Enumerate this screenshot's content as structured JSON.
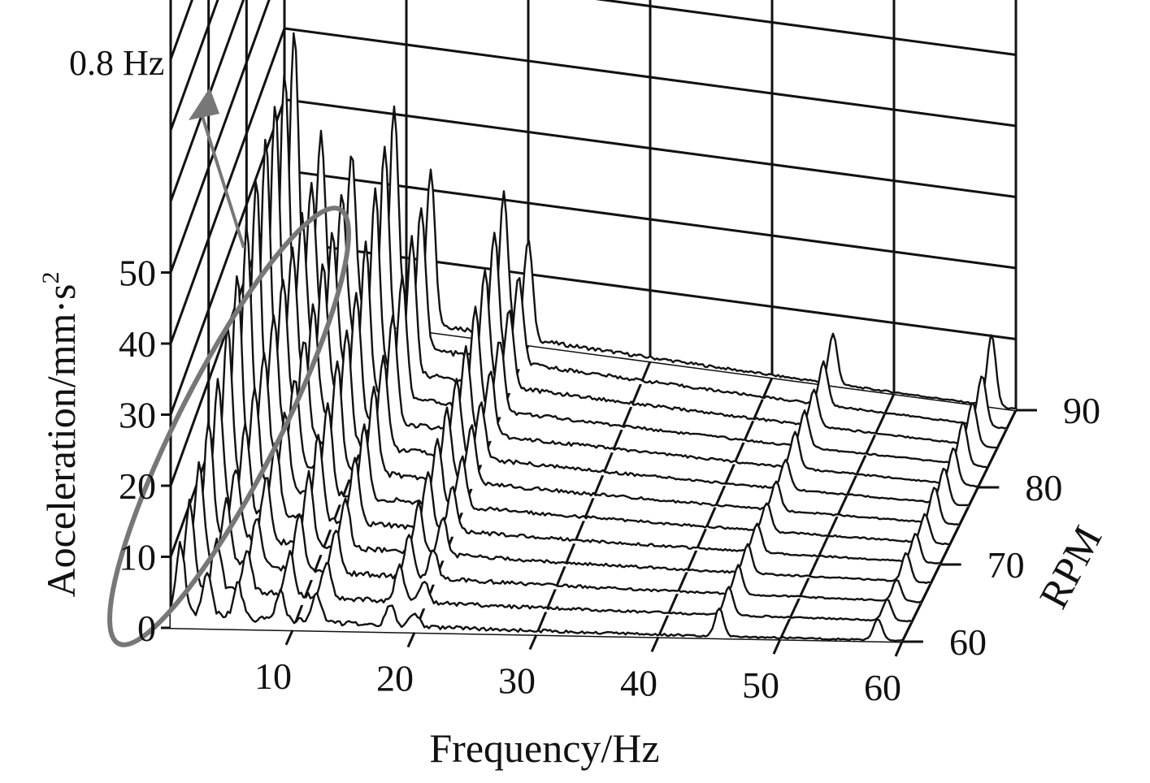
{
  "chart_data": {
    "type": "waterfall",
    "xlabel": "Frequency/Hz",
    "ylabel": "Aoceleration/mm·s",
    "ylabel_superscript": "2",
    "zlabel": "RPM",
    "x_ticks": [
      "10",
      "20",
      "30",
      "40",
      "50",
      "60"
    ],
    "y_ticks": [
      "0",
      "10",
      "20",
      "30",
      "40",
      "50"
    ],
    "z_ticks": [
      "60",
      "70",
      "80",
      "90"
    ],
    "xlim": [
      0,
      60
    ],
    "ylim": [
      0,
      50
    ],
    "zlim": [
      60,
      90
    ],
    "annotation": "0.8 Hz",
    "annotation_marks": "ellipse around the low-frequency peaks with an arrow to the 0.8 Hz label",
    "grid": true,
    "line_color": "#111111",
    "highlight_color": "#777777",
    "series": [
      {
        "rpm": 60,
        "peaks": [
          [
            0.8,
            10
          ],
          [
            3,
            6
          ],
          [
            5.5,
            5
          ],
          [
            9,
            4
          ],
          [
            12,
            4
          ],
          [
            18,
            3
          ],
          [
            20,
            2
          ],
          [
            45,
            4
          ],
          [
            58,
            3
          ]
        ]
      },
      {
        "rpm": 62.5,
        "peaks": [
          [
            0.8,
            12
          ],
          [
            3,
            7
          ],
          [
            5.5,
            6
          ],
          [
            9,
            6
          ],
          [
            12,
            5
          ],
          [
            18,
            5
          ],
          [
            20,
            3
          ],
          [
            45,
            4
          ],
          [
            58,
            3
          ]
        ]
      },
      {
        "rpm": 65,
        "peaks": [
          [
            0.8,
            14
          ],
          [
            3,
            9
          ],
          [
            5.5,
            7
          ],
          [
            9,
            8
          ],
          [
            12,
            6
          ],
          [
            18,
            6
          ],
          [
            20,
            4
          ],
          [
            45,
            4
          ],
          [
            58,
            3
          ]
        ]
      },
      {
        "rpm": 67.5,
        "peaks": [
          [
            0.8,
            16
          ],
          [
            3,
            10
          ],
          [
            5.5,
            9
          ],
          [
            9,
            10
          ],
          [
            12,
            7
          ],
          [
            18,
            7
          ],
          [
            20,
            5
          ],
          [
            45,
            4
          ],
          [
            58,
            4
          ]
        ]
      },
      {
        "rpm": 70,
        "peaks": [
          [
            0.8,
            18
          ],
          [
            3,
            12
          ],
          [
            5.5,
            10
          ],
          [
            9,
            12
          ],
          [
            12,
            9
          ],
          [
            18,
            8
          ],
          [
            20,
            6
          ],
          [
            45,
            4
          ],
          [
            58,
            4
          ]
        ]
      },
      {
        "rpm": 72.5,
        "peaks": [
          [
            0.8,
            22
          ],
          [
            3,
            14
          ],
          [
            5.5,
            11
          ],
          [
            9,
            13
          ],
          [
            12,
            10
          ],
          [
            18,
            9
          ],
          [
            20,
            7
          ],
          [
            45,
            4
          ],
          [
            58,
            4
          ]
        ]
      },
      {
        "rpm": 75,
        "peaks": [
          [
            0.8,
            26
          ],
          [
            3,
            15
          ],
          [
            5.5,
            12
          ],
          [
            9,
            15
          ],
          [
            12,
            12
          ],
          [
            18,
            10
          ],
          [
            20,
            8
          ],
          [
            45,
            4
          ],
          [
            58,
            5
          ]
        ]
      },
      {
        "rpm": 77.5,
        "peaks": [
          [
            0.8,
            29
          ],
          [
            3,
            17
          ],
          [
            5.5,
            14
          ],
          [
            9,
            16
          ],
          [
            12,
            13
          ],
          [
            18,
            11
          ],
          [
            20,
            8
          ],
          [
            45,
            4
          ],
          [
            58,
            5
          ]
        ]
      },
      {
        "rpm": 80,
        "peaks": [
          [
            0.8,
            32
          ],
          [
            3,
            18
          ],
          [
            5.5,
            15
          ],
          [
            9,
            18
          ],
          [
            12,
            15
          ],
          [
            18,
            12
          ],
          [
            20,
            9
          ],
          [
            45,
            5
          ],
          [
            58,
            5
          ]
        ]
      },
      {
        "rpm": 82.5,
        "peaks": [
          [
            0.8,
            34
          ],
          [
            3,
            19
          ],
          [
            5.5,
            17
          ],
          [
            9,
            21
          ],
          [
            12,
            17
          ],
          [
            18,
            14
          ],
          [
            20,
            10
          ],
          [
            45,
            5
          ],
          [
            58,
            6
          ]
        ]
      },
      {
        "rpm": 85,
        "peaks": [
          [
            0.8,
            35
          ],
          [
            3,
            20
          ],
          [
            5.5,
            18
          ],
          [
            9,
            25
          ],
          [
            12,
            19
          ],
          [
            18,
            16
          ],
          [
            20,
            11
          ],
          [
            45,
            5
          ],
          [
            58,
            6
          ]
        ]
      },
      {
        "rpm": 87.5,
        "peaks": [
          [
            0.8,
            36
          ],
          [
            3,
            21
          ],
          [
            5.5,
            20
          ],
          [
            9,
            28
          ],
          [
            12,
            20
          ],
          [
            18,
            18
          ],
          [
            20,
            12
          ],
          [
            45,
            6
          ],
          [
            58,
            7
          ]
        ]
      },
      {
        "rpm": 90,
        "peaks": [
          [
            0.8,
            38
          ],
          [
            3,
            24
          ],
          [
            5.5,
            22
          ],
          [
            9,
            30
          ],
          [
            12,
            22
          ],
          [
            18,
            20
          ],
          [
            20,
            14
          ],
          [
            45,
            7
          ],
          [
            58,
            10
          ]
        ]
      }
    ]
  }
}
